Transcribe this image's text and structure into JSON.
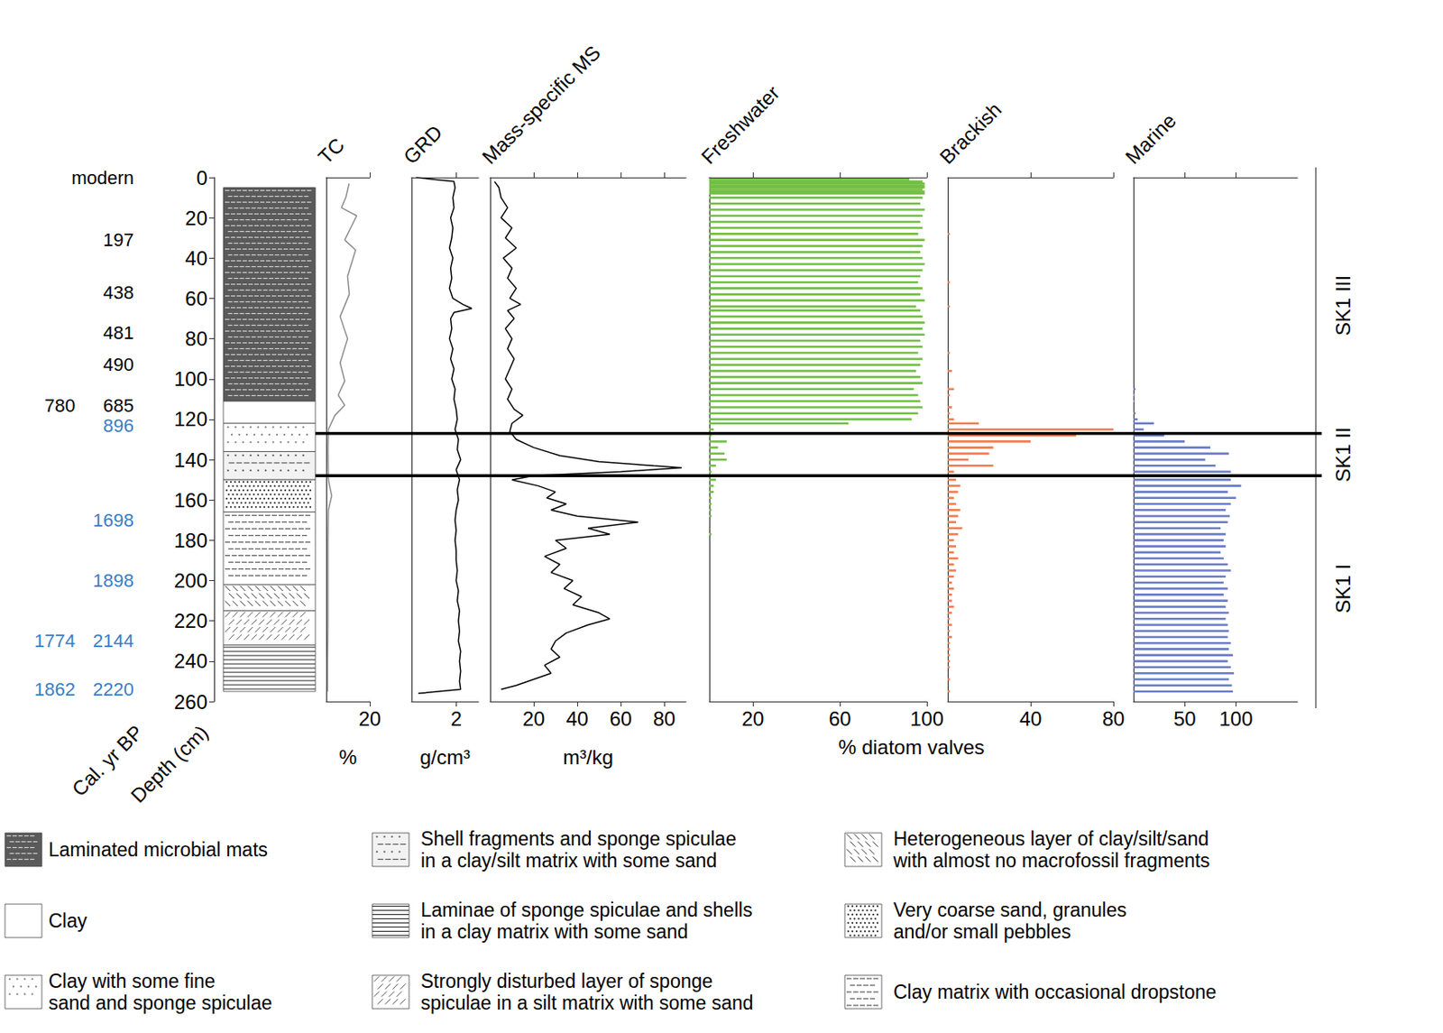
{
  "chart_data": {
    "type": "stratigraphic",
    "ylabel": "Depth (cm)",
    "ylim": [
      0,
      260
    ],
    "yticks": [
      0,
      20,
      40,
      60,
      80,
      100,
      120,
      140,
      160,
      180,
      200,
      220,
      240,
      260
    ],
    "grid": false,
    "age_label": "Cal. yr BP",
    "ages": [
      {
        "depth": 0,
        "labels": [
          "modern"
        ],
        "color": "#000000"
      },
      {
        "depth": 31,
        "labels": [
          "197"
        ],
        "color": "#000000"
      },
      {
        "depth": 57,
        "labels": [
          "438"
        ],
        "color": "#000000"
      },
      {
        "depth": 77,
        "labels": [
          "481"
        ],
        "color": "#000000"
      },
      {
        "depth": 93,
        "labels": [
          "490"
        ],
        "color": "#000000"
      },
      {
        "depth": 113,
        "labels": [
          "780",
          "685"
        ],
        "color": "#000000"
      },
      {
        "depth": 123,
        "labels": [
          "896"
        ],
        "color": "#3b7dc4"
      },
      {
        "depth": 170,
        "labels": [
          "1698"
        ],
        "color": "#3b7dc4"
      },
      {
        "depth": 200,
        "labels": [
          "1898"
        ],
        "color": "#3b7dc4"
      },
      {
        "depth": 230,
        "labels": [
          "1774",
          "2144"
        ],
        "color": "#3b7dc4"
      },
      {
        "depth": 254,
        "labels": [
          "1862",
          "2220"
        ],
        "color": "#3b7dc4"
      }
    ],
    "lithology": [
      {
        "top": 5,
        "bottom": 111,
        "unit": "Laminated microbial mats"
      },
      {
        "top": 111,
        "bottom": 122,
        "unit": "Clay"
      },
      {
        "top": 122,
        "bottom": 136,
        "unit": "Clay with some fine sand and sponge spiculae"
      },
      {
        "top": 136,
        "bottom": 150,
        "unit": "Shell fragments and sponge spiculae in a clay/silt matrix with some sand"
      },
      {
        "top": 150,
        "bottom": 166,
        "unit": "Very coarse sand, granules and/or small pebbles"
      },
      {
        "top": 166,
        "bottom": 202,
        "unit": "Clay matrix with occasional dropstone"
      },
      {
        "top": 202,
        "bottom": 215,
        "unit": "Heterogeneous layer of clay/silt/sand with almost no macrofossil fragments"
      },
      {
        "top": 215,
        "bottom": 232,
        "unit": "Strongly disturbed layer of sponge spiculae in a silt matrix with some sand"
      },
      {
        "top": 232,
        "bottom": 255,
        "unit": "Laminae of sponge spiculae and shells in a clay matrix with some sand"
      }
    ],
    "lithology_legend": [
      "Laminated microbial mats",
      "Clay",
      "Clay with some fine sand and sponge spiculae",
      "Shell fragments and sponge spiculae in a clay/silt matrix with some sand",
      "Laminae of sponge spiculae and shells in a clay matrix with some sand",
      "Strongly disturbed layer of sponge spiculae in a silt matrix with some sand",
      "Heterogeneous layer of clay/silt/sand with almost no macrofossil fragments",
      "Very coarse sand, granules and/or small pebbles",
      "Clay matrix with occasional dropstone"
    ],
    "panels": [
      {
        "title": "TC",
        "type": "line",
        "unit": "%",
        "color": "#8c8c8c",
        "xlim": [
          0,
          20
        ],
        "xticks": [
          20
        ],
        "depth": [
          3,
          10,
          15,
          19,
          31,
          36,
          49,
          58,
          69,
          80,
          92,
          101,
          108,
          113,
          118,
          125,
          135,
          150,
          158,
          165,
          180,
          200,
          220,
          240,
          255
        ],
        "values": [
          10.5,
          9,
          7,
          14,
          8.5,
          13.5,
          9.8,
          10.6,
          6.4,
          9.8,
          6.4,
          8.5,
          5.5,
          8.5,
          4,
          1,
          0.8,
          1,
          2.5,
          1,
          0.8,
          0.8,
          0.8,
          0.6,
          0.6
        ]
      },
      {
        "title": "GRD",
        "type": "line",
        "unit": "g/cm³",
        "color": "#000000",
        "xlim": [
          0,
          3
        ],
        "xticks": [
          2
        ],
        "depth": [
          0,
          2,
          5,
          10,
          15,
          20,
          25,
          30,
          35,
          40,
          45,
          50,
          55,
          60,
          63,
          65,
          67,
          70,
          75,
          80,
          85,
          90,
          95,
          100,
          105,
          110,
          115,
          120,
          125,
          130,
          135,
          140,
          145,
          150,
          155,
          160,
          165,
          170,
          175,
          180,
          185,
          190,
          195,
          200,
          205,
          210,
          215,
          220,
          225,
          230,
          235,
          240,
          245,
          250,
          254,
          256
        ],
        "values": [
          0.2,
          1.9,
          1.95,
          1.85,
          1.9,
          1.75,
          1.85,
          1.8,
          1.7,
          1.85,
          1.75,
          1.8,
          1.7,
          1.85,
          2.3,
          2.7,
          1.9,
          1.75,
          1.8,
          1.7,
          1.85,
          1.75,
          1.9,
          1.8,
          1.95,
          1.9,
          2.0,
          2.05,
          1.95,
          2.1,
          2.05,
          2.2,
          2.0,
          2.15,
          2.05,
          2.1,
          2.0,
          1.95,
          2.0,
          1.95,
          2.0,
          2.0,
          2.05,
          2.0,
          2.1,
          2.05,
          2.15,
          2.1,
          2.15,
          2.1,
          2.2,
          2.15,
          2.2,
          2.15,
          2.2,
          0.3
        ]
      },
      {
        "title": "Mass-specific MS",
        "type": "line",
        "unit": "m³/kg",
        "color": "#000000",
        "xlim": [
          0,
          90
        ],
        "xticks": [
          20,
          40,
          60,
          80
        ],
        "depth": [
          2,
          5,
          10,
          15,
          20,
          25,
          30,
          35,
          40,
          45,
          50,
          55,
          60,
          63,
          66,
          70,
          75,
          80,
          85,
          90,
          95,
          100,
          105,
          110,
          115,
          118,
          122,
          126,
          130,
          134,
          138,
          141,
          143,
          144,
          146,
          148,
          150,
          153,
          156,
          159,
          162,
          165,
          168,
          171,
          174,
          177,
          180,
          184,
          188,
          192,
          196,
          200,
          204,
          208,
          212,
          216,
          219,
          222,
          226,
          230,
          234,
          238,
          242,
          246,
          249,
          252,
          254
        ],
        "values": [
          2,
          4,
          5,
          8,
          5,
          10,
          7,
          12,
          6,
          10,
          8,
          12,
          9,
          14,
          8,
          11,
          7,
          10,
          8,
          11,
          9,
          7,
          10,
          8,
          11,
          15,
          10,
          9,
          12,
          20,
          32,
          50,
          75,
          88,
          60,
          20,
          10,
          22,
          30,
          26,
          35,
          28,
          40,
          68,
          45,
          55,
          30,
          35,
          25,
          32,
          28,
          38,
          34,
          42,
          38,
          50,
          55,
          45,
          35,
          30,
          28,
          32,
          25,
          28,
          20,
          12,
          5
        ]
      }
    ],
    "diatoms": {
      "type": "bar",
      "label": "% diatom valves",
      "depth": [
        1,
        2,
        3,
        4,
        5,
        6,
        7,
        8,
        10,
        13,
        16,
        19,
        22,
        25,
        28,
        31,
        34,
        37,
        40,
        43,
        46,
        49,
        52,
        55,
        58,
        61,
        64,
        66,
        69,
        72,
        75,
        78,
        81,
        84,
        87,
        90,
        93,
        96,
        99,
        102,
        105,
        108,
        111,
        114,
        117,
        120,
        122,
        125,
        128,
        131,
        134,
        137,
        140,
        143,
        146,
        150,
        153,
        156,
        159,
        162,
        165,
        168,
        171,
        174,
        177,
        180,
        183,
        186,
        189,
        192,
        195,
        198,
        201,
        204,
        207,
        210,
        213,
        216,
        219,
        222,
        225,
        228,
        231,
        234,
        237,
        240,
        243,
        246,
        249,
        252,
        255
      ],
      "series": [
        {
          "name": "Freshwater",
          "color": "#72bf44",
          "xlim": [
            0,
            100
          ],
          "xticks": [
            20,
            60,
            100
          ],
          "values": [
            92,
            98,
            99,
            99,
            99,
            98,
            99,
            99,
            98,
            97,
            99,
            98,
            97,
            98,
            96,
            99,
            98,
            97,
            98,
            99,
            98,
            97,
            96,
            98,
            97,
            99,
            95,
            97,
            98,
            99,
            98,
            99,
            97,
            98,
            96,
            98,
            97,
            95,
            97,
            98,
            94,
            96,
            97,
            98,
            96,
            93,
            64,
            2,
            1,
            8,
            4,
            7,
            8,
            3,
            1,
            3,
            2,
            2,
            1,
            1,
            1,
            1,
            0,
            0,
            1,
            0,
            0,
            0,
            0,
            0,
            0,
            0,
            0,
            0,
            0,
            0,
            0,
            0,
            0,
            0,
            0,
            0,
            0,
            0,
            0,
            0,
            0,
            0,
            0,
            0,
            0
          ]
        },
        {
          "name": "Brackish",
          "color": "#f47c4f",
          "xlim": [
            0,
            80
          ],
          "xticks": [
            40,
            80
          ],
          "values": [
            0,
            0,
            0,
            0,
            0,
            0,
            0,
            0,
            0,
            0,
            0,
            0,
            0,
            0,
            1,
            0,
            0,
            0,
            0,
            0,
            0,
            0,
            1,
            0,
            0,
            0,
            1,
            0,
            0,
            0,
            0,
            0,
            0,
            0,
            1,
            0,
            0,
            2,
            0,
            0,
            3,
            1,
            0,
            2,
            1,
            3,
            15,
            80,
            62,
            40,
            22,
            20,
            10,
            22,
            3,
            4,
            6,
            5,
            3,
            4,
            6,
            5,
            4,
            7,
            5,
            3,
            4,
            3,
            5,
            3,
            4,
            3,
            2,
            3,
            2,
            2,
            3,
            2,
            1,
            2,
            1,
            2,
            1,
            1,
            1,
            1,
            1,
            0,
            1,
            0,
            1
          ]
        },
        {
          "name": "Marine",
          "color": "#6a7cc8",
          "xlim": [
            0,
            160
          ],
          "xticks": [
            50,
            100
          ],
          "values": [
            0,
            0,
            0,
            0,
            0,
            0,
            0,
            0,
            0,
            0,
            0,
            0,
            0,
            0,
            0,
            0,
            0,
            0,
            0,
            0,
            0,
            0,
            0,
            0,
            0,
            0,
            0,
            0,
            0,
            0,
            0,
            0,
            0,
            0,
            0,
            0,
            0,
            0,
            0,
            0,
            2,
            1,
            1,
            0,
            2,
            4,
            20,
            10,
            30,
            50,
            75,
            93,
            70,
            80,
            95,
            95,
            105,
            92,
            100,
            95,
            90,
            94,
            92,
            85,
            90,
            88,
            90,
            85,
            88,
            92,
            95,
            90,
            88,
            92,
            88,
            92,
            90,
            93,
            90,
            92,
            93,
            92,
            95,
            93,
            97,
            92,
            95,
            98,
            93,
            96,
            97
          ]
        }
      ]
    },
    "zones": [
      {
        "label": "SK1 III",
        "top": 0,
        "bottom": 127
      },
      {
        "label": "SK1 II",
        "top": 127,
        "bottom": 148
      },
      {
        "label": "SK1 I",
        "top": 148,
        "bottom": 260
      }
    ]
  }
}
